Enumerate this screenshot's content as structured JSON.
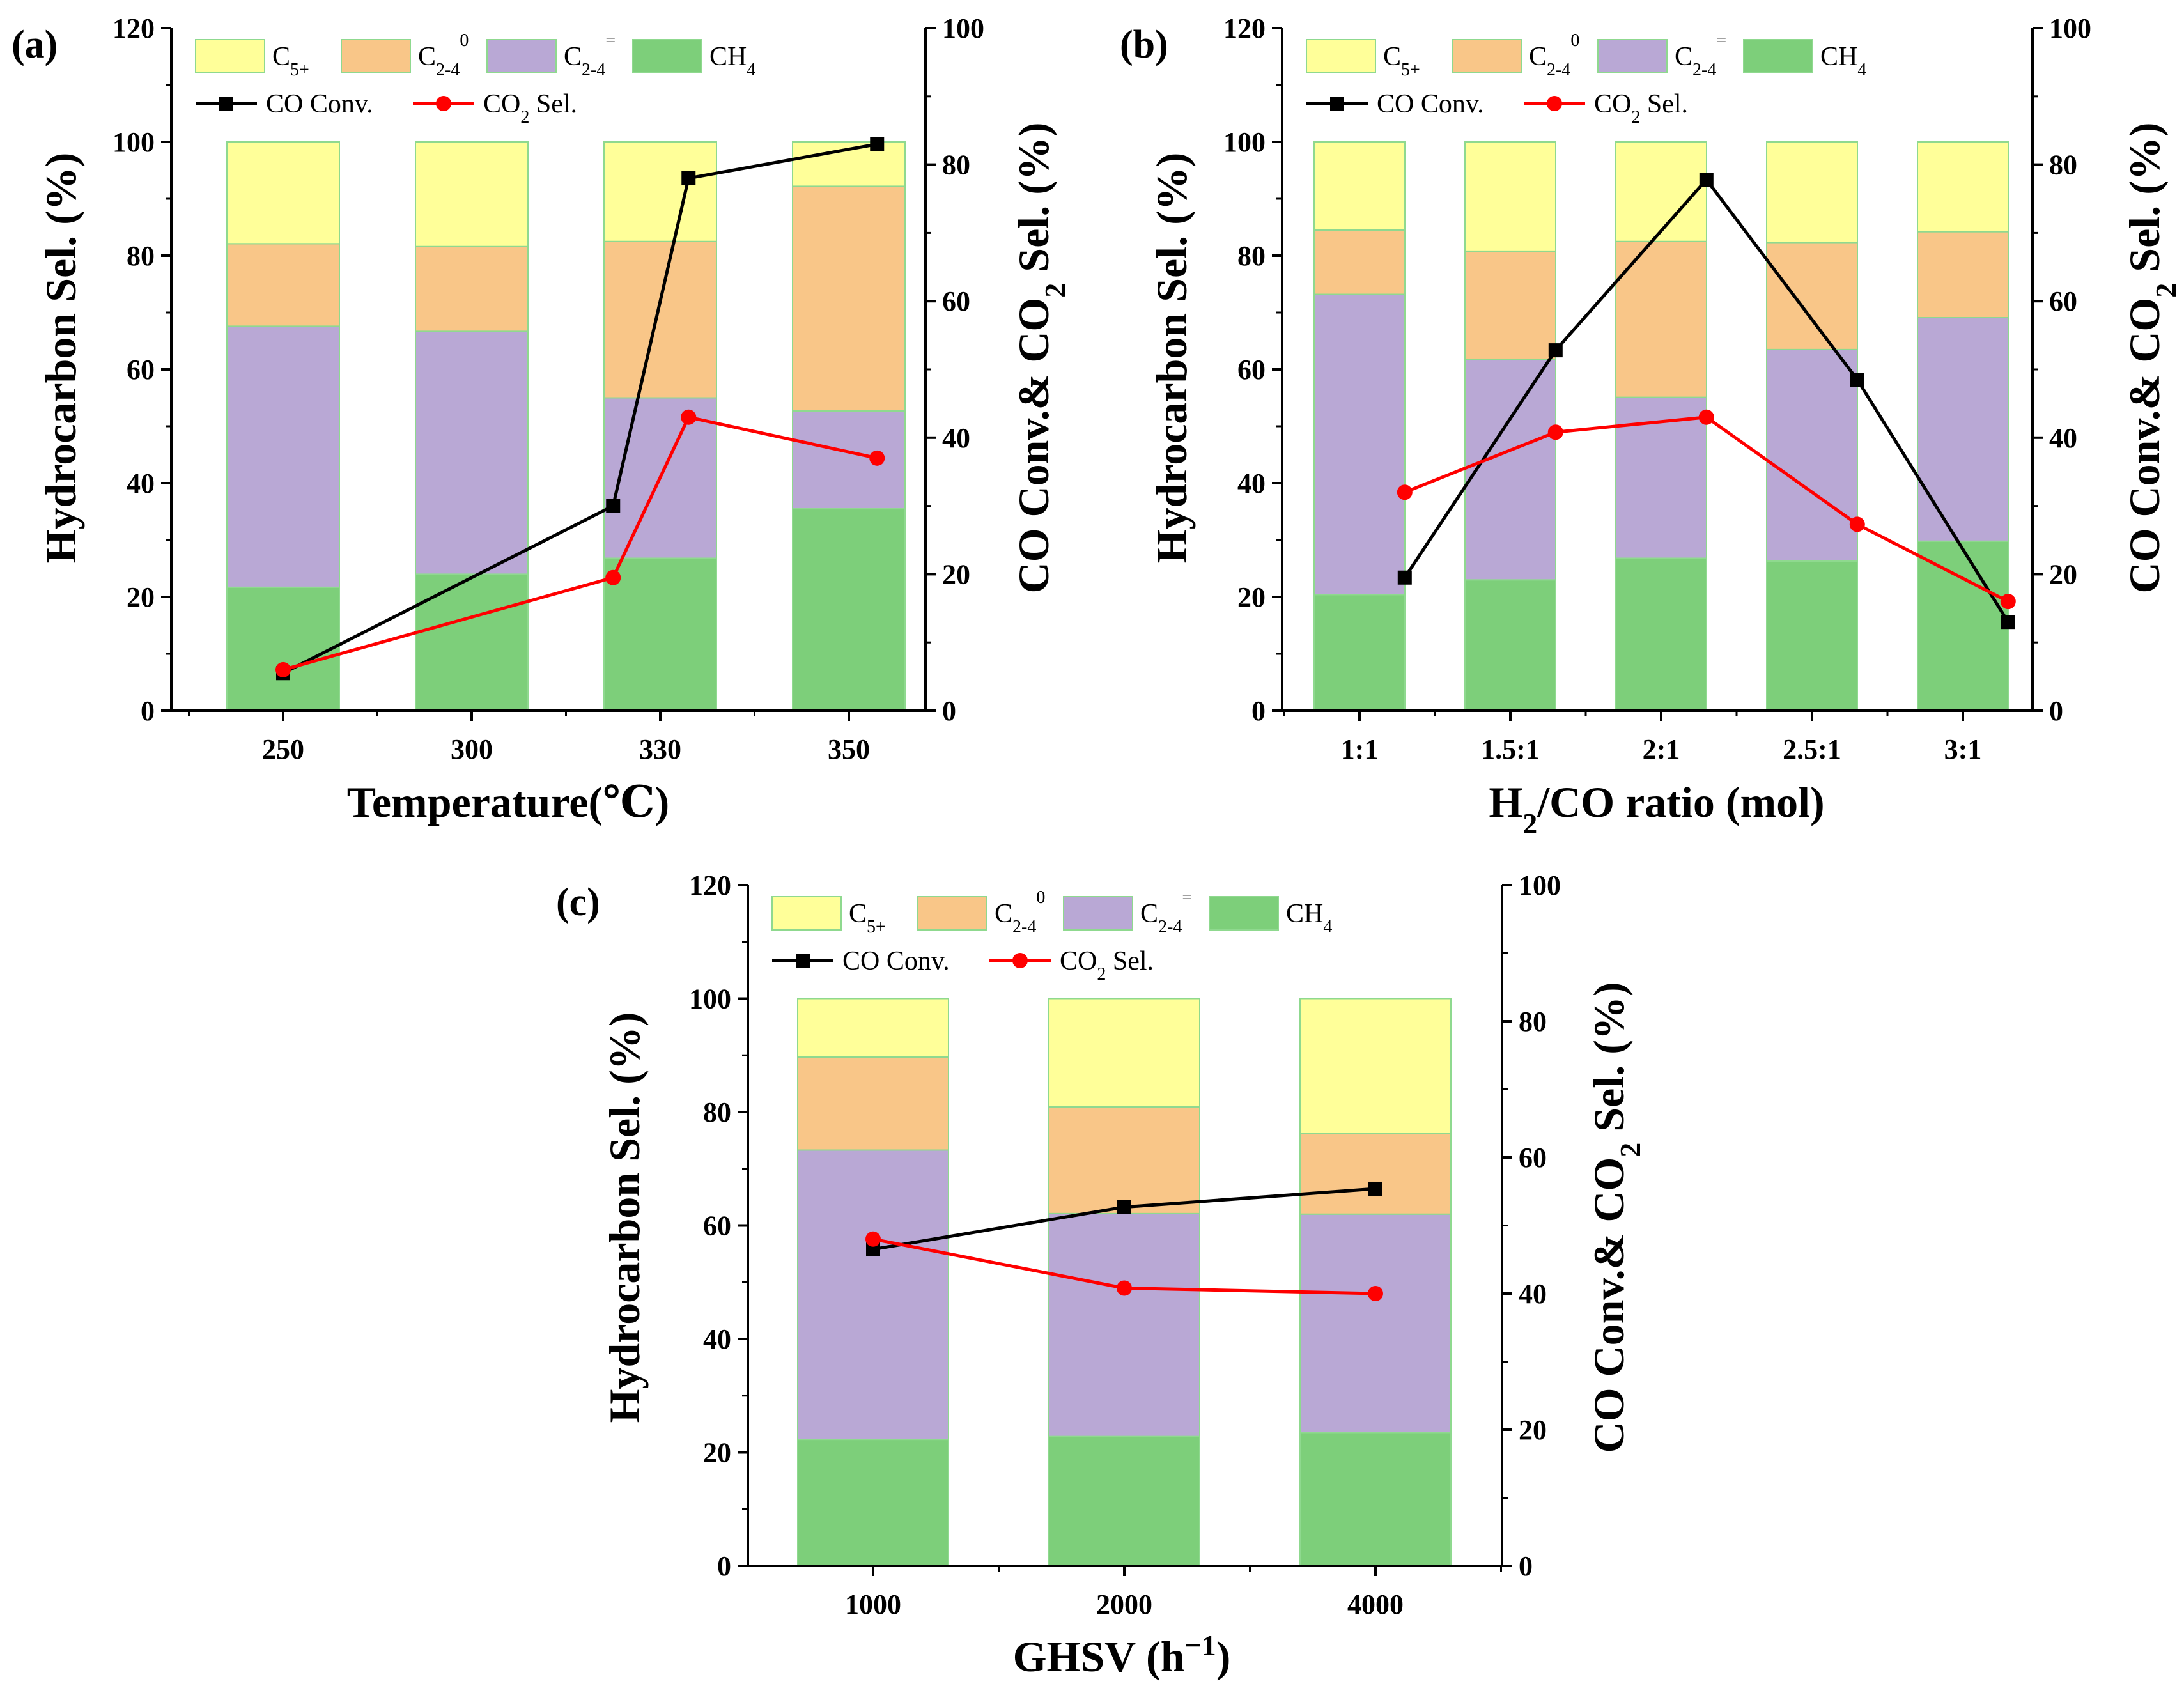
{
  "colors": {
    "c5plus": "#FFFF99",
    "c24_paraffin": "#F9C688",
    "c24_olefin": "#B9A8D5",
    "ch4": "#7DCF7A",
    "bar_edge": "#8FD98F",
    "co_conv": "#000000",
    "co2_sel": "#FF0000"
  },
  "legend": {
    "c5plus_main": "C",
    "c5plus_sub": "5+",
    "c24p_main": "C",
    "c24p_sub": "2-4",
    "c24p_sup": "0",
    "c24o_main": "C",
    "c24o_sub": "2-4",
    "c24o_sup": "=",
    "ch4_main": "CH",
    "ch4_sub": "4",
    "co_conv": "CO Conv.",
    "co2_main": "CO",
    "co2_sub": "2",
    "co2_rest": " Sel."
  },
  "chart_data": [
    {
      "type": "bar",
      "panel": "(a)",
      "xlabel": "Temperature(℃)",
      "ylabel_left": "Hydrocarbon Sel. (%)",
      "ylabel_right_pre": "CO Conv.& CO",
      "ylabel_right_sub": "2",
      "ylabel_right_post": " Sel. (%)",
      "ylim_left": [
        0,
        120
      ],
      "ylim_right": [
        0,
        100
      ],
      "yticks_left": [
        "0",
        "20",
        "40",
        "60",
        "80",
        "100",
        "120"
      ],
      "yticks_right": [
        "0",
        "20",
        "40",
        "60",
        "80",
        "100"
      ],
      "categories": [
        "250",
        "300",
        "330",
        "350"
      ],
      "stacked_series": [
        {
          "name": "CH4",
          "values": [
            21.7,
            24.0,
            26.8,
            35.5
          ]
        },
        {
          "name": "C2-4=",
          "values": [
            45.9,
            42.7,
            28.2,
            17.2
          ]
        },
        {
          "name": "C2-4 0",
          "values": [
            14.5,
            14.9,
            27.5,
            39.5
          ]
        },
        {
          "name": "C5+",
          "values": [
            17.9,
            18.4,
            17.5,
            7.8
          ]
        }
      ],
      "line_x": [
        0,
        1.75,
        2.15,
        3.15
      ],
      "line_series": [
        {
          "name": "CO Conv.",
          "values": [
            5.5,
            30.0,
            78.0,
            83.0
          ]
        },
        {
          "name": "CO2 Sel.",
          "values": [
            6.0,
            19.5,
            43.0,
            37.0
          ]
        }
      ]
    },
    {
      "type": "bar",
      "panel": "(b)",
      "xlabel_pre": "H",
      "xlabel_sub": "2",
      "xlabel_post": "/CO ratio (mol)",
      "ylabel_left": "Hydrocarbon Sel. (%)",
      "ylabel_right_pre": "CO Conv.& CO",
      "ylabel_right_sub": "2",
      "ylabel_right_post": " Sel. (%)",
      "ylim_left": [
        0,
        120
      ],
      "ylim_right": [
        0,
        100
      ],
      "yticks_left": [
        "0",
        "20",
        "40",
        "60",
        "80",
        "100",
        "120"
      ],
      "yticks_right": [
        "0",
        "20",
        "40",
        "60",
        "80",
        "100"
      ],
      "categories": [
        "1:1",
        "1.5:1",
        "2:1",
        "2.5:1",
        "3:1"
      ],
      "stacked_series": [
        {
          "name": "CH4",
          "values": [
            20.4,
            23.0,
            26.8,
            26.3,
            29.8
          ]
        },
        {
          "name": "C2-4=",
          "values": [
            52.8,
            38.8,
            28.3,
            37.2,
            39.3
          ]
        },
        {
          "name": "C2-4 0",
          "values": [
            11.3,
            19.0,
            27.4,
            18.8,
            15.1
          ]
        },
        {
          "name": "C5+",
          "values": [
            15.5,
            19.2,
            17.5,
            17.7,
            15.8
          ]
        }
      ],
      "line_x": [
        0.3,
        1.3,
        2.3,
        3.3,
        4.3
      ],
      "line_series": [
        {
          "name": "CO Conv.",
          "values": [
            19.5,
            52.8,
            77.8,
            48.5,
            13.0
          ]
        },
        {
          "name": "CO2 Sel.",
          "values": [
            32.0,
            40.8,
            43.0,
            27.3,
            16.0
          ]
        }
      ]
    },
    {
      "type": "bar",
      "panel": "(c)",
      "xlabel_pre": "GHSV (h",
      "xlabel_sup": "−1",
      "xlabel_post": ")",
      "ylabel_left": "Hydrocarbon Sel. (%)",
      "ylabel_right_pre": "CO Conv.& CO",
      "ylabel_right_sub": "2",
      "ylabel_right_post": " Sel. (%)",
      "ylim_left": [
        0,
        120
      ],
      "ylim_right": [
        0,
        100
      ],
      "yticks_left": [
        "0",
        "20",
        "40",
        "60",
        "80",
        "100",
        "120"
      ],
      "yticks_right": [
        "0",
        "20",
        "40",
        "60",
        "80",
        "100"
      ],
      "categories": [
        "1000",
        "2000",
        "4000"
      ],
      "stacked_series": [
        {
          "name": "CH4",
          "values": [
            22.3,
            22.8,
            23.5
          ]
        },
        {
          "name": "C2-4=",
          "values": [
            51.0,
            39.3,
            38.5
          ]
        },
        {
          "name": "C2-4 0",
          "values": [
            16.4,
            18.8,
            14.2
          ]
        },
        {
          "name": "C5+",
          "values": [
            10.3,
            19.1,
            23.8
          ]
        }
      ],
      "line_x": [
        0,
        1,
        2
      ],
      "line_series": [
        {
          "name": "CO Conv.",
          "values": [
            46.5,
            52.7,
            55.4
          ]
        },
        {
          "name": "CO2 Sel.",
          "values": [
            48.0,
            40.8,
            40.0
          ]
        }
      ]
    }
  ]
}
